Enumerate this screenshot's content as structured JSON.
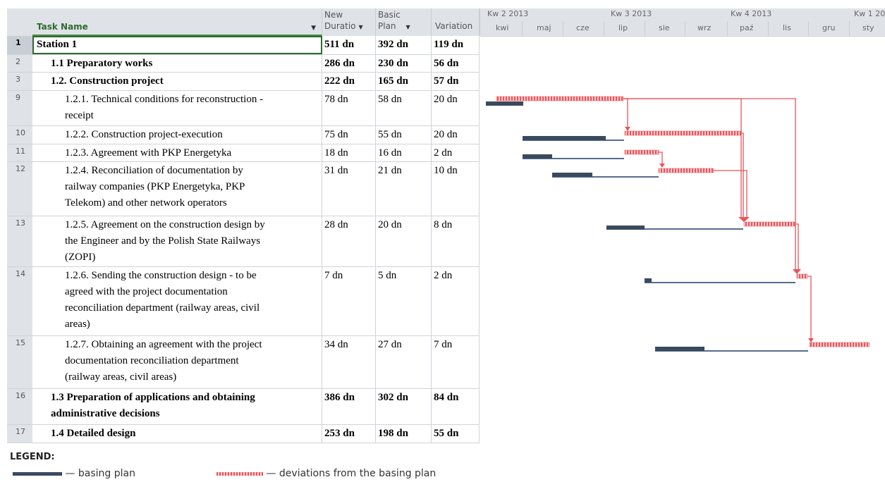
{
  "columns": {
    "task_name": "Task Name",
    "new_duration": [
      "New",
      "Duratio"
    ],
    "basic_plan": [
      "Basic",
      "Plan"
    ],
    "variation": "Variation"
  },
  "timeline": {
    "quarters": [
      "Kw 2 2013",
      "Kw 3 2013",
      "Kw 4 2013",
      "Kw 1 20"
    ],
    "months": [
      "kwi",
      "maj",
      "cze",
      "lip",
      "sie",
      "wrz",
      "paź",
      "lis",
      "gru",
      "sty"
    ]
  },
  "rows": [
    {
      "num": "1",
      "name": "Station 1",
      "dur": "511 dn",
      "base": "392 dn",
      "var": "119 dn",
      "level": 0,
      "bold": true
    },
    {
      "num": "2",
      "name": "1.1 Preparatory works",
      "dur": "286 dn",
      "base": "230 dn",
      "var": "56 dn",
      "level": 1,
      "bold": true
    },
    {
      "num": "3",
      "name": "1.2. Construction project",
      "dur": "222 dn",
      "base": "165 dn",
      "var": "57 dn",
      "level": 1,
      "bold": true
    },
    {
      "num": "9",
      "name": [
        "1.2.1. Technical conditions for reconstruction -",
        "receipt"
      ],
      "dur": "78 dn",
      "base": "58 dn",
      "var": "20 dn",
      "level": 2,
      "bold": false
    },
    {
      "num": "10",
      "name": "1.2.2. Construction project-execution",
      "dur": "75 dn",
      "base": "55 dn",
      "var": "20 dn",
      "level": 2,
      "bold": false
    },
    {
      "num": "11",
      "name": "1.2.3. Agreement with PKP Energetyka",
      "dur": "18 dn",
      "base": "16 dn",
      "var": "2 dn",
      "level": 2,
      "bold": false
    },
    {
      "num": "12",
      "name": [
        "1.2.4. Reconciliation of documentation by",
        "railway companies (PKP Energetyka, PKP",
        "Telekom) and other network operators"
      ],
      "dur": "31 dn",
      "base": "21 dn",
      "var": "10 dn",
      "level": 2,
      "bold": false
    },
    {
      "num": "13",
      "name": [
        "1.2.5. Agreement on the construction design by",
        "the Engineer and by the Polish State Railways",
        "(ZOPI)"
      ],
      "dur": "28 dn",
      "base": "20 dn",
      "var": "8 dn",
      "level": 2,
      "bold": false
    },
    {
      "num": "14",
      "name": [
        "1.2.6. Sending the construction design - to be",
        "agreed with the project documentation",
        "reconciliation department (railway areas, civil",
        "areas)"
      ],
      "dur": "7 dn",
      "base": "5 dn",
      "var": "2 dn",
      "level": 2,
      "bold": false
    },
    {
      "num": "15",
      "name": [
        "1.2.7. Obtaining an agreement with the project",
        "documentation reconciliation department",
        "(railway areas, civil areas)"
      ],
      "dur": "34 dn",
      "base": "27 dn",
      "var": "7 dn",
      "level": 2,
      "bold": false
    },
    {
      "num": "16",
      "name": [
        "1.3 Preparation of applications and obtaining",
        "administrative decisions"
      ],
      "dur": "386 dn",
      "base": "302 dn",
      "var": "84 dn",
      "level": 1,
      "bold": true
    },
    {
      "num": "17",
      "name": "1.4 Detailed design",
      "dur": "253 dn",
      "base": "198 dn",
      "var": "55 dn",
      "level": 1,
      "bold": true
    }
  ],
  "legend": {
    "title": "LEGEND:",
    "basing_plan": "— basing plan",
    "deviations": "— deviations from the basing plan"
  },
  "colors": {
    "header_bg": "#dfe3e8",
    "task_header": "#2e6b2e",
    "baseline_bar": "#3a4a5e",
    "link_line": "#1f3c6e",
    "deviation": "#e8555a"
  }
}
